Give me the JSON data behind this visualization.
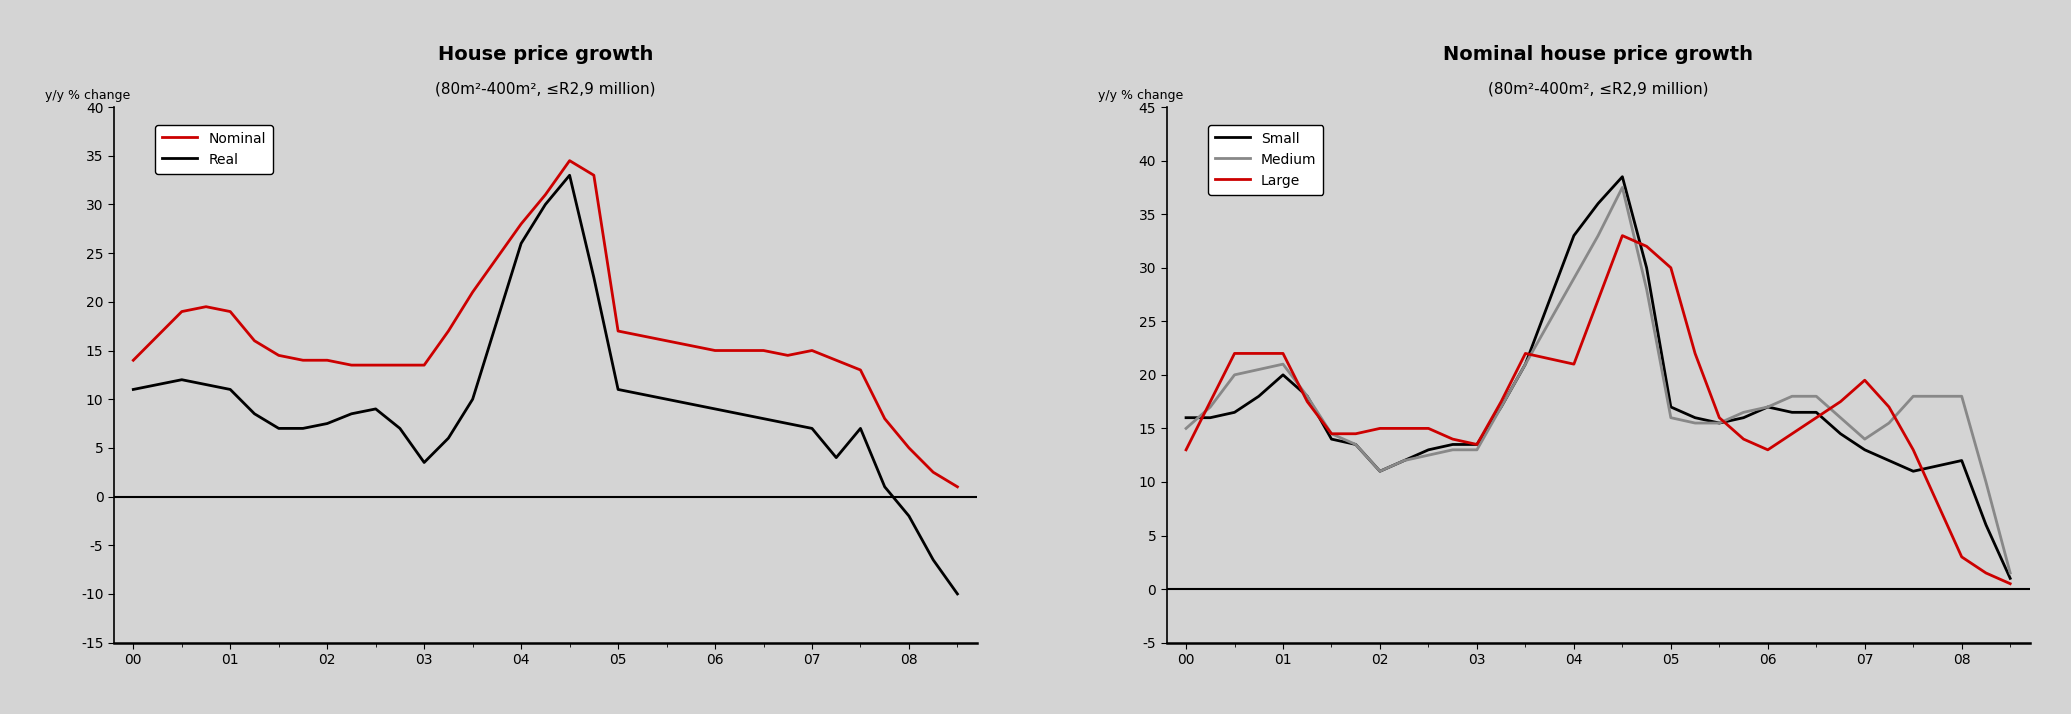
{
  "background_color": "#d4d4d4",
  "chart1": {
    "title": "House price growth",
    "subtitle": "(80m²-400m², ≤R2,9 million)",
    "ylabel": "y/y % change",
    "ylim": [
      -15,
      40
    ],
    "yticks": [
      -15,
      -10,
      -5,
      0,
      5,
      10,
      15,
      20,
      25,
      30,
      35,
      40
    ],
    "xlabels": [
      "00",
      "01",
      "02",
      "03",
      "04",
      "05",
      "06",
      "07",
      "08"
    ],
    "line1_color": "#cc0000",
    "line2_color": "#000000",
    "legend_labels": [
      "Nominal",
      "Real"
    ]
  },
  "chart2": {
    "title": "Nominal house price growth",
    "subtitle": "(80m²-400m², ≤R2,9 million)",
    "ylabel": "y/y % change",
    "ylim": [
      -5,
      45
    ],
    "yticks": [
      -5,
      0,
      5,
      10,
      15,
      20,
      25,
      30,
      35,
      40,
      45
    ],
    "xlabels": [
      "00",
      "01",
      "02",
      "03",
      "04",
      "05",
      "06",
      "07",
      "08"
    ],
    "small_color": "#000000",
    "medium_color": "#888888",
    "large_color": "#cc0000",
    "legend_labels": [
      "Small",
      "Medium",
      "Large"
    ]
  }
}
